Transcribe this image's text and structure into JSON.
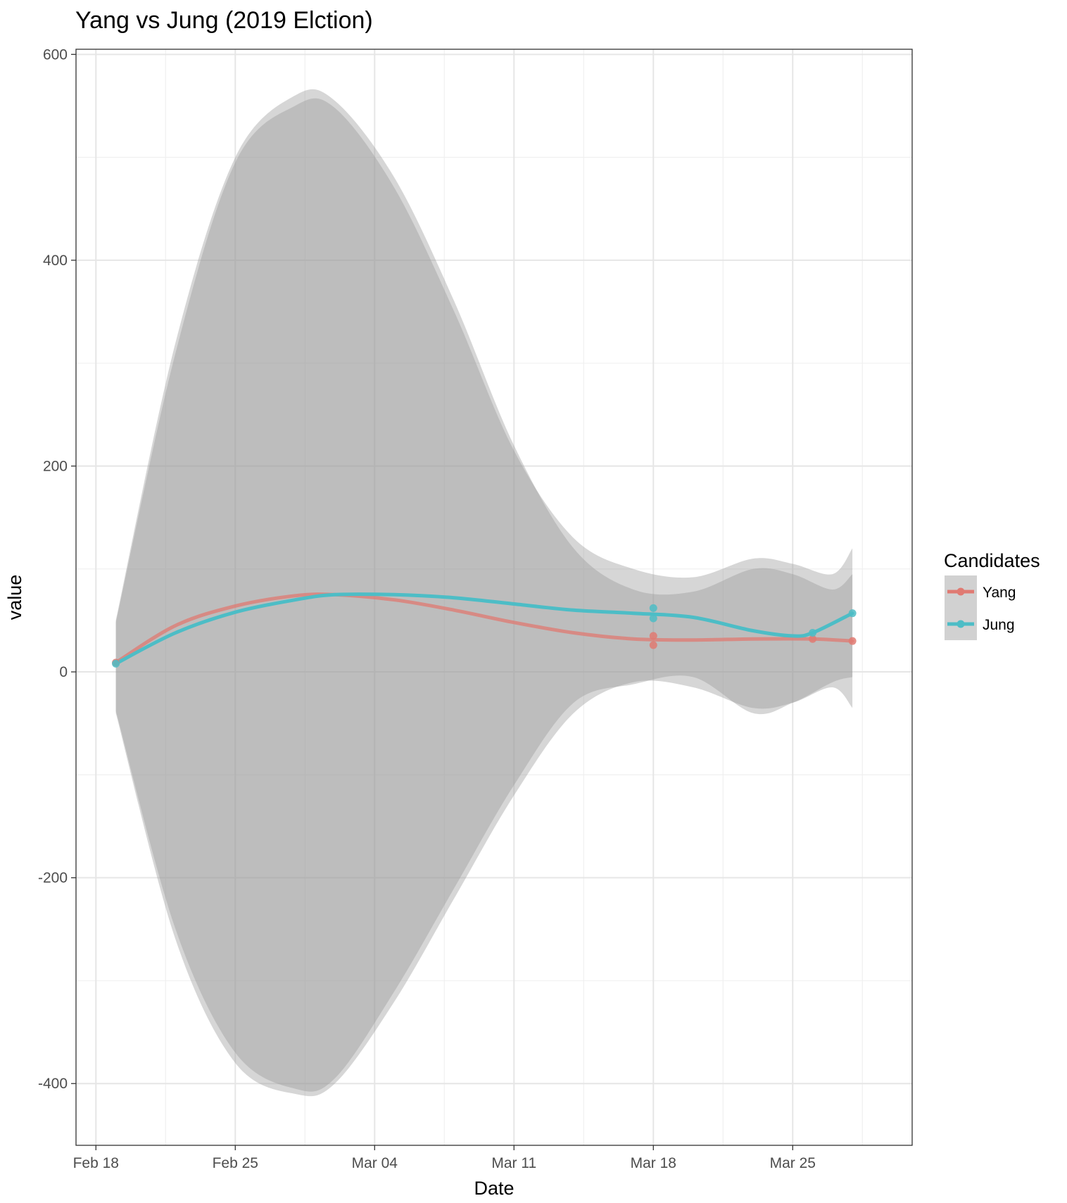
{
  "chart_data": {
    "type": "line",
    "title": "Yang vs Jung (2019 Elction)",
    "xlabel": "Date",
    "ylabel": "value",
    "x_axis": {
      "type": "date",
      "range": [
        "2019-02-17",
        "2019-03-31"
      ],
      "ticks": [
        {
          "date": "2019-02-18",
          "label": "Feb 18"
        },
        {
          "date": "2019-02-25",
          "label": "Feb 25"
        },
        {
          "date": "2019-03-04",
          "label": "Mar 04"
        },
        {
          "date": "2019-03-11",
          "label": "Mar 11"
        },
        {
          "date": "2019-03-18",
          "label": "Mar 18"
        },
        {
          "date": "2019-03-25",
          "label": "Mar 25"
        }
      ]
    },
    "y_axis": {
      "range": [
        -460,
        605
      ],
      "ticks": [
        600,
        400,
        200,
        0,
        -200,
        -400
      ]
    },
    "grid": true,
    "legend": {
      "title": "Candidates",
      "position": "right",
      "entries": [
        "Yang",
        "Jung"
      ]
    },
    "series": [
      {
        "name": "Yang",
        "color": "#E07A72",
        "points": [
          {
            "x": "2019-02-19",
            "y": 9
          },
          {
            "x": "2019-03-18",
            "y": 35
          },
          {
            "x": "2019-03-18",
            "y": 26
          },
          {
            "x": "2019-03-26",
            "y": 32
          },
          {
            "x": "2019-03-28",
            "y": 30
          }
        ],
        "smooth": [
          {
            "x": "2019-02-19",
            "y": 9
          },
          {
            "x": "2019-02-22",
            "y": 45
          },
          {
            "x": "2019-02-25",
            "y": 64
          },
          {
            "x": "2019-02-28",
            "y": 74
          },
          {
            "x": "2019-03-02",
            "y": 75
          },
          {
            "x": "2019-03-05",
            "y": 70
          },
          {
            "x": "2019-03-08",
            "y": 60
          },
          {
            "x": "2019-03-11",
            "y": 48
          },
          {
            "x": "2019-03-14",
            "y": 38
          },
          {
            "x": "2019-03-17",
            "y": 32
          },
          {
            "x": "2019-03-20",
            "y": 31
          },
          {
            "x": "2019-03-23",
            "y": 32
          },
          {
            "x": "2019-03-26",
            "y": 32
          },
          {
            "x": "2019-03-28",
            "y": 30
          }
        ],
        "ribbon": [
          {
            "x": "2019-02-19",
            "lo": -40,
            "hi": 50
          },
          {
            "x": "2019-02-22",
            "lo": -260,
            "hi": 320
          },
          {
            "x": "2019-02-25",
            "lo": -380,
            "hi": 500
          },
          {
            "x": "2019-02-28",
            "lo": -410,
            "hi": 560
          },
          {
            "x": "2019-03-02",
            "lo": -400,
            "hi": 555
          },
          {
            "x": "2019-03-05",
            "lo": -320,
            "hi": 480
          },
          {
            "x": "2019-03-08",
            "lo": -220,
            "hi": 360
          },
          {
            "x": "2019-03-11",
            "lo": -120,
            "hi": 220
          },
          {
            "x": "2019-03-14",
            "lo": -40,
            "hi": 120
          },
          {
            "x": "2019-03-17",
            "lo": -10,
            "hi": 80
          },
          {
            "x": "2019-03-20",
            "lo": -15,
            "hi": 78
          },
          {
            "x": "2019-03-23",
            "lo": -35,
            "hi": 100
          },
          {
            "x": "2019-03-25",
            "lo": -30,
            "hi": 95
          },
          {
            "x": "2019-03-27",
            "lo": -15,
            "hi": 80
          },
          {
            "x": "2019-03-28",
            "lo": -35,
            "hi": 95
          }
        ]
      },
      {
        "name": "Jung",
        "color": "#4DBDC6",
        "points": [
          {
            "x": "2019-02-19",
            "y": 8
          },
          {
            "x": "2019-03-18",
            "y": 62
          },
          {
            "x": "2019-03-18",
            "y": 52
          },
          {
            "x": "2019-03-26",
            "y": 38
          },
          {
            "x": "2019-03-28",
            "y": 57
          }
        ],
        "smooth": [
          {
            "x": "2019-02-19",
            "y": 8
          },
          {
            "x": "2019-02-22",
            "y": 38
          },
          {
            "x": "2019-02-25",
            "y": 58
          },
          {
            "x": "2019-02-28",
            "y": 70
          },
          {
            "x": "2019-03-02",
            "y": 75
          },
          {
            "x": "2019-03-05",
            "y": 75
          },
          {
            "x": "2019-03-08",
            "y": 72
          },
          {
            "x": "2019-03-11",
            "y": 66
          },
          {
            "x": "2019-03-14",
            "y": 60
          },
          {
            "x": "2019-03-17",
            "y": 57
          },
          {
            "x": "2019-03-20",
            "y": 53
          },
          {
            "x": "2019-03-23",
            "y": 40
          },
          {
            "x": "2019-03-25",
            "y": 35
          },
          {
            "x": "2019-03-26",
            "y": 38
          },
          {
            "x": "2019-03-28",
            "y": 57
          }
        ],
        "ribbon": [
          {
            "x": "2019-02-19",
            "lo": -38,
            "hi": 48
          },
          {
            "x": "2019-02-22",
            "lo": -250,
            "hi": 310
          },
          {
            "x": "2019-02-25",
            "lo": -370,
            "hi": 495
          },
          {
            "x": "2019-02-28",
            "lo": -405,
            "hi": 550
          },
          {
            "x": "2019-03-02",
            "lo": -395,
            "hi": 548
          },
          {
            "x": "2019-03-05",
            "lo": -310,
            "hi": 470
          },
          {
            "x": "2019-03-08",
            "lo": -210,
            "hi": 350
          },
          {
            "x": "2019-03-11",
            "lo": -110,
            "hi": 215
          },
          {
            "x": "2019-03-14",
            "lo": -30,
            "hi": 130
          },
          {
            "x": "2019-03-17",
            "lo": -12,
            "hi": 100
          },
          {
            "x": "2019-03-20",
            "lo": -5,
            "hi": 92
          },
          {
            "x": "2019-03-23",
            "lo": -40,
            "hi": 110
          },
          {
            "x": "2019-03-25",
            "lo": -30,
            "hi": 105
          },
          {
            "x": "2019-03-27",
            "lo": -10,
            "hi": 95
          },
          {
            "x": "2019-03-28",
            "lo": -5,
            "hi": 120
          }
        ]
      }
    ]
  }
}
